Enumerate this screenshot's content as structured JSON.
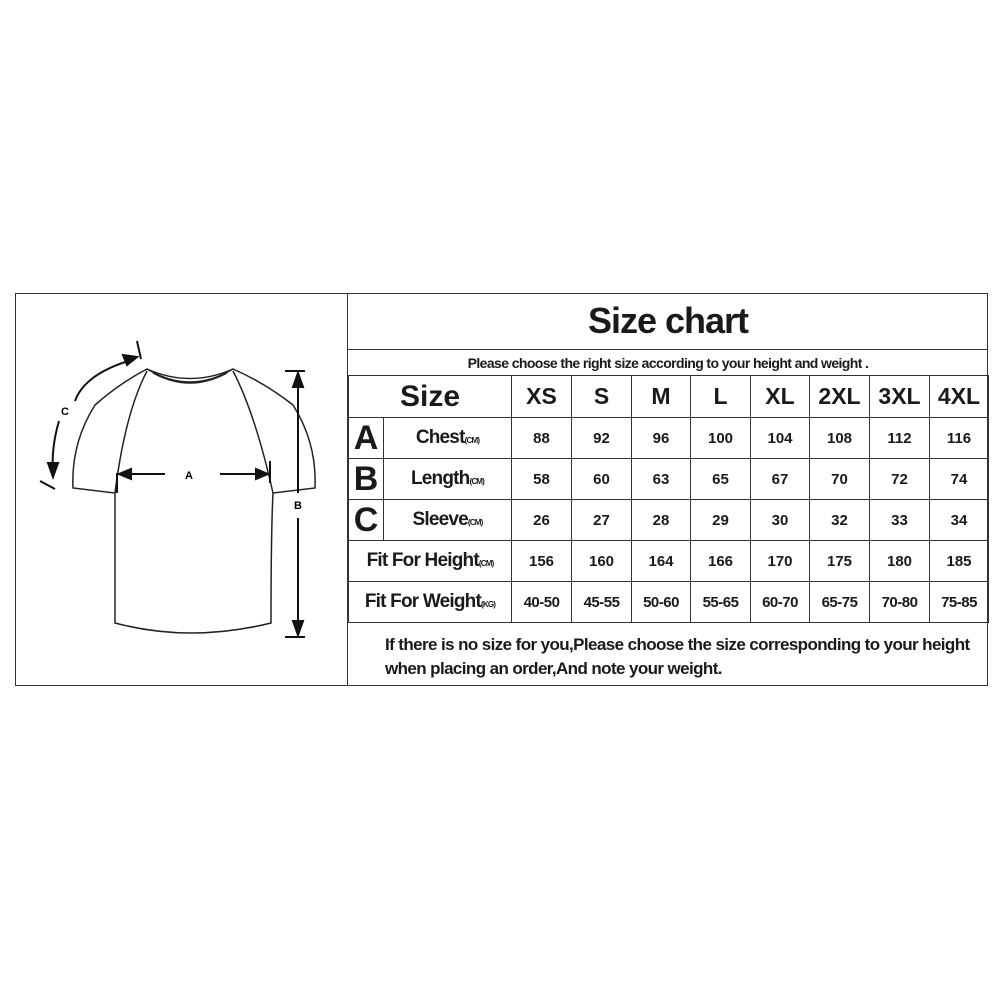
{
  "title": "Size chart",
  "subtitle": "Please choose the right size according to your height and weight .",
  "diagram": {
    "labels": {
      "chest": "A",
      "length": "B",
      "sleeve": "C"
    }
  },
  "table": {
    "size_label": "Size",
    "sizes": [
      "XS",
      "S",
      "M",
      "L",
      "XL",
      "2XL",
      "3XL",
      "4XL"
    ],
    "rows": [
      {
        "letter": "A",
        "label": "Chest",
        "unit": "(CM)",
        "values": [
          "88",
          "92",
          "96",
          "100",
          "104",
          "108",
          "112",
          "116"
        ]
      },
      {
        "letter": "B",
        "label": "Length",
        "unit": "(CM)",
        "values": [
          "58",
          "60",
          "63",
          "65",
          "67",
          "70",
          "72",
          "74"
        ]
      },
      {
        "letter": "C",
        "label": "Sleeve",
        "unit": "(CM)",
        "values": [
          "26",
          "27",
          "28",
          "29",
          "30",
          "32",
          "33",
          "34"
        ]
      },
      {
        "letter": "",
        "label": "Fit For Height",
        "unit": "(CM)",
        "values": [
          "156",
          "160",
          "164",
          "166",
          "170",
          "175",
          "180",
          "185"
        ]
      },
      {
        "letter": "",
        "label": "Fit For Weight",
        "unit": "(KG)",
        "values": [
          "40-50",
          "45-55",
          "50-60",
          "55-65",
          "60-70",
          "65-75",
          "70-80",
          "75-85"
        ]
      }
    ]
  },
  "note": "If there is no size for you,Please choose the size corresponding to your height when placing an order,And note your weight."
}
